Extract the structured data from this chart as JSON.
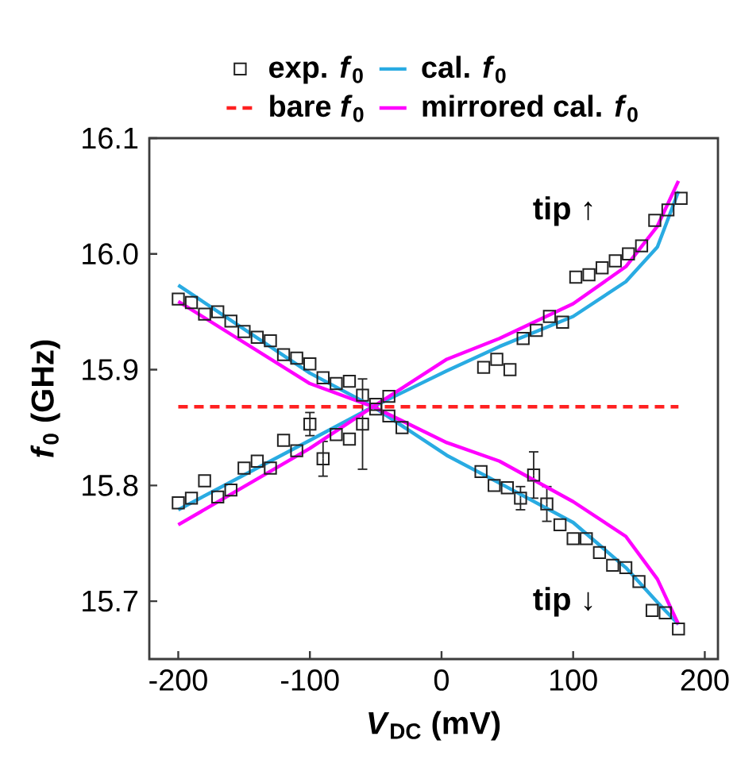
{
  "chart_data": {
    "type": "line",
    "xlabel": "*V*$_{DC}$ (mV)",
    "ylabel": "*f*$_{0}$ (GHz)",
    "xlim": [
      -222,
      210
    ],
    "ylim": [
      15.65,
      16.1
    ],
    "xticks": [
      -200,
      -100,
      0,
      100,
      200
    ],
    "yticks": [
      15.7,
      15.8,
      15.9,
      {
        "value": 16.0,
        "label": "16.0"
      },
      16.1
    ],
    "grid": false,
    "legend": "top",
    "annotations": [
      "tip ↑",
      "tip ↓"
    ],
    "series": [
      {
        "name": "exp. *f*$_{0}$",
        "type": "scatter",
        "marker": "square",
        "color": "#222222",
        "x": [
          -200,
          -190,
          -180,
          -170,
          -160,
          -150,
          -140,
          -130,
          -120,
          -110,
          -100,
          -90,
          -80,
          -70,
          -60,
          -50,
          -40,
          -30,
          -200,
          -190,
          -180,
          -170,
          -160,
          -150,
          -140,
          -130,
          -120,
          -110,
          -100,
          -90,
          -80,
          -70,
          -60,
          -50,
          -40,
          32,
          42,
          52,
          62,
          72,
          82,
          92,
          102,
          112,
          122,
          132,
          142,
          152,
          162,
          172,
          182,
          30,
          40,
          50,
          60,
          70,
          80,
          90,
          100,
          110,
          120,
          130,
          140,
          150,
          160,
          170,
          180
        ],
        "values": [
          15.961,
          15.958,
          15.948,
          15.95,
          15.942,
          15.933,
          15.928,
          15.925,
          15.913,
          15.91,
          15.905,
          15.893,
          15.888,
          15.89,
          15.878,
          15.87,
          15.86,
          15.85,
          15.785,
          15.789,
          15.804,
          15.79,
          15.796,
          15.815,
          15.821,
          15.815,
          15.839,
          15.83,
          15.853,
          15.823,
          15.844,
          15.84,
          15.853,
          15.866,
          15.877,
          15.902,
          15.909,
          15.9,
          15.927,
          15.934,
          15.946,
          15.941,
          15.98,
          15.982,
          15.988,
          15.994,
          16.0,
          16.007,
          16.029,
          16.038,
          16.048,
          15.812,
          15.8,
          15.798,
          15.789,
          15.809,
          15.784,
          15.766,
          15.754,
          15.754,
          15.742,
          15.731,
          15.729,
          15.717,
          15.692,
          15.69,
          15.676
        ],
        "errors": [
          null,
          null,
          null,
          null,
          null,
          null,
          null,
          null,
          null,
          null,
          null,
          null,
          null,
          null,
          null,
          null,
          null,
          null,
          null,
          null,
          null,
          null,
          null,
          null,
          null,
          null,
          null,
          null,
          0.01,
          0.015,
          null,
          null,
          0.039,
          null,
          null,
          null,
          null,
          null,
          null,
          null,
          null,
          null,
          null,
          null,
          null,
          null,
          null,
          null,
          null,
          null,
          null,
          null,
          null,
          null,
          0.01,
          0.02,
          0.015,
          null,
          null,
          null,
          null,
          null,
          null,
          null,
          null,
          null,
          null
        ]
      },
      {
        "name": "cal. *f*$_{0}$",
        "color": "#29abe2",
        "x": [
          -200,
          -100,
          -52,
          4,
          44,
          100,
          140,
          164,
          180
        ],
        "values": [
          15.973,
          15.897,
          15.868,
          15.826,
          15.802,
          15.768,
          15.729,
          15.699,
          15.68
        ]
      },
      {
        "name": "bare *f*$_{0}$",
        "line_style": "dashed",
        "color": "#ff2020",
        "x": [
          -200,
          180
        ],
        "values": [
          15.868,
          15.868
        ]
      },
      {
        "name": "mirrored cal. *f*$_{0}$",
        "color": "#ff00ff",
        "x": [
          -200,
          -100,
          -52,
          4,
          44,
          100,
          140,
          164,
          180
        ],
        "values": [
          15.959,
          15.888,
          15.868,
          15.837,
          15.821,
          15.786,
          15.756,
          15.719,
          15.68
        ]
      },
      {
        "color": "#29abe2",
        "x": [
          -200,
          -100,
          -52,
          4,
          44,
          100,
          140,
          164,
          180
        ],
        "values": [
          15.779,
          15.839,
          15.868,
          15.899,
          15.92,
          15.946,
          15.976,
          16.006,
          16.054
        ]
      },
      {
        "color": "#ff00ff",
        "x": [
          -200,
          -100,
          -52,
          4,
          44,
          100,
          140,
          164,
          180
        ],
        "values": [
          15.766,
          15.832,
          15.868,
          15.909,
          15.927,
          15.957,
          15.989,
          16.024,
          16.063
        ]
      }
    ]
  }
}
